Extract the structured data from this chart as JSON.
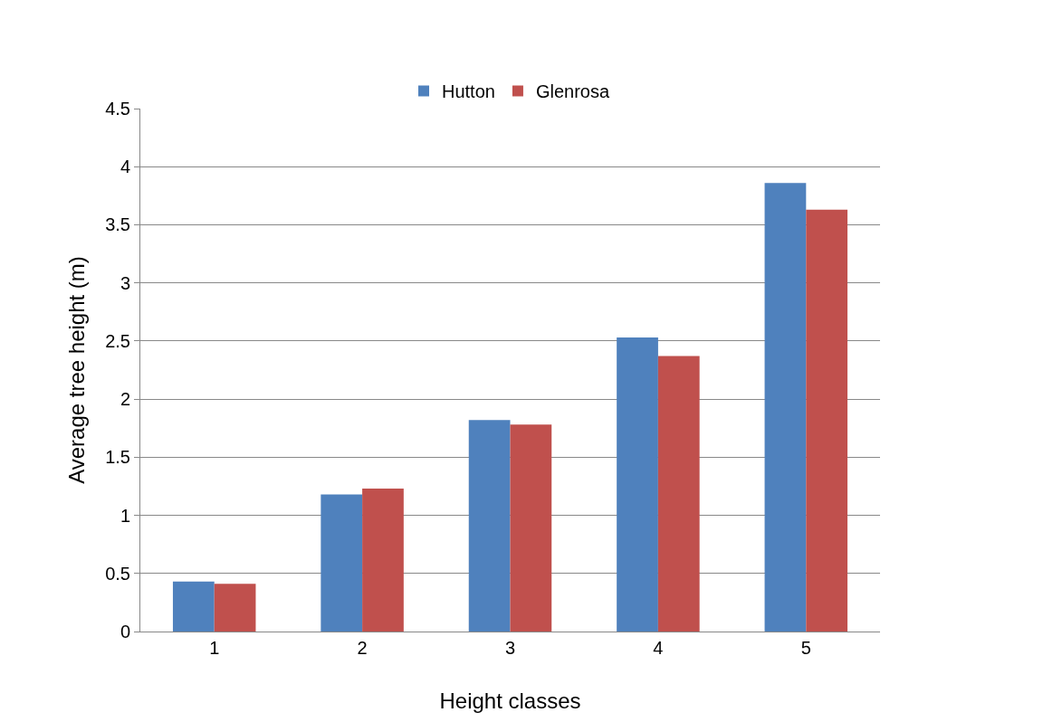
{
  "chart_data": {
    "type": "bar",
    "xlabel": "Height classes",
    "ylabel": "Average tree height (m)",
    "categories": [
      "1",
      "2",
      "3",
      "4",
      "5"
    ],
    "series": [
      {
        "name": "Hutton",
        "color": "#4f81bd",
        "values": [
          0.43,
          1.18,
          1.82,
          2.53,
          3.86
        ]
      },
      {
        "name": "Glenrosa",
        "color": "#c0504d",
        "values": [
          0.41,
          1.23,
          1.78,
          2.37,
          3.63
        ]
      }
    ],
    "ylim": [
      0,
      4.5
    ],
    "yticks": [
      0,
      {
        "value": 0.5,
        "label": "0.5"
      },
      1,
      {
        "value": 1.5,
        "label": "1.5"
      },
      2,
      {
        "value": 2.5,
        "label": "2.5"
      },
      3,
      {
        "value": 3.5,
        "label": "3.5"
      },
      4,
      {
        "value": 4.5,
        "label": "4.5"
      }
    ],
    "grid": "y",
    "legend": "top"
  }
}
